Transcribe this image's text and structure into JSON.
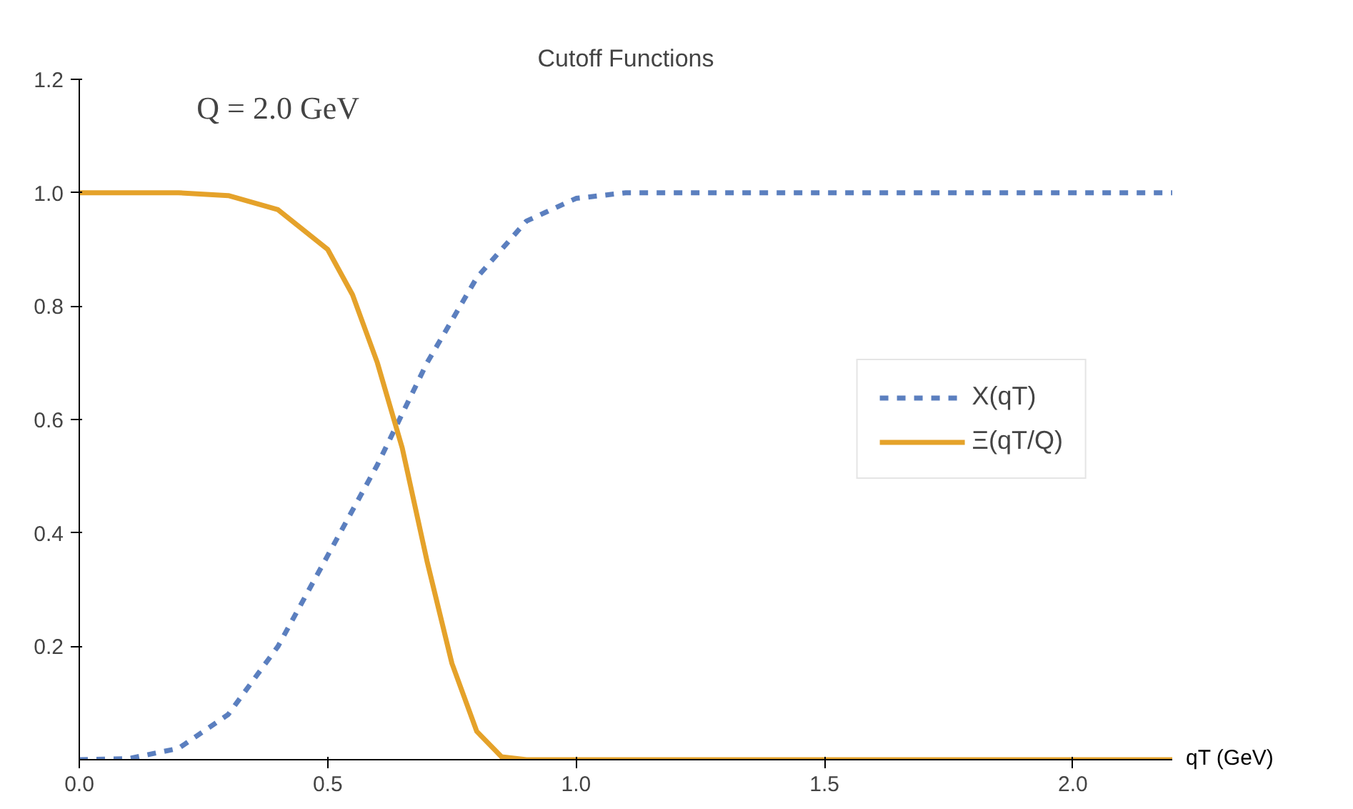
{
  "chart_data": {
    "type": "line",
    "title": "Cutoff Functions",
    "subtitle": "Q = 2.0 GeV",
    "xlabel": "qT (GeV)",
    "xlim": [
      0,
      2.2
    ],
    "ylim": [
      0,
      1.2
    ],
    "xticks": [
      {
        "value": 0,
        "label": "0.0"
      },
      0.5,
      {
        "value": 1,
        "label": "1.0"
      },
      1.5,
      {
        "value": 2,
        "label": "2.0"
      }
    ],
    "yticks": [
      0.2,
      0.4,
      0.6,
      0.8,
      {
        "value": 1,
        "label": "1.0"
      },
      1.2
    ],
    "grid": false,
    "legend": "right",
    "series": [
      {
        "name": "X(qT)",
        "color": "#5b7fbf",
        "line_style": "dashed",
        "x": [
          0,
          0.1,
          0.2,
          0.3,
          0.4,
          0.5,
          0.6,
          0.7,
          0.8,
          0.9,
          1.0,
          1.1,
          1.2,
          2.2
        ],
        "values": [
          0,
          0.002,
          0.02,
          0.08,
          0.2,
          0.36,
          0.52,
          0.7,
          0.85,
          0.95,
          0.99,
          1.0,
          1.0,
          1.0
        ]
      },
      {
        "name": "Ξ(qT/Q)",
        "color": "#e5a22a",
        "line_style": "solid",
        "x": [
          0,
          0.2,
          0.3,
          0.4,
          0.5,
          0.55,
          0.6,
          0.65,
          0.7,
          0.75,
          0.8,
          0.85,
          0.9,
          2.2
        ],
        "values": [
          1,
          1,
          0.995,
          0.97,
          0.9,
          0.82,
          0.7,
          0.55,
          0.35,
          0.17,
          0.05,
          0.005,
          0,
          0
        ]
      }
    ]
  }
}
